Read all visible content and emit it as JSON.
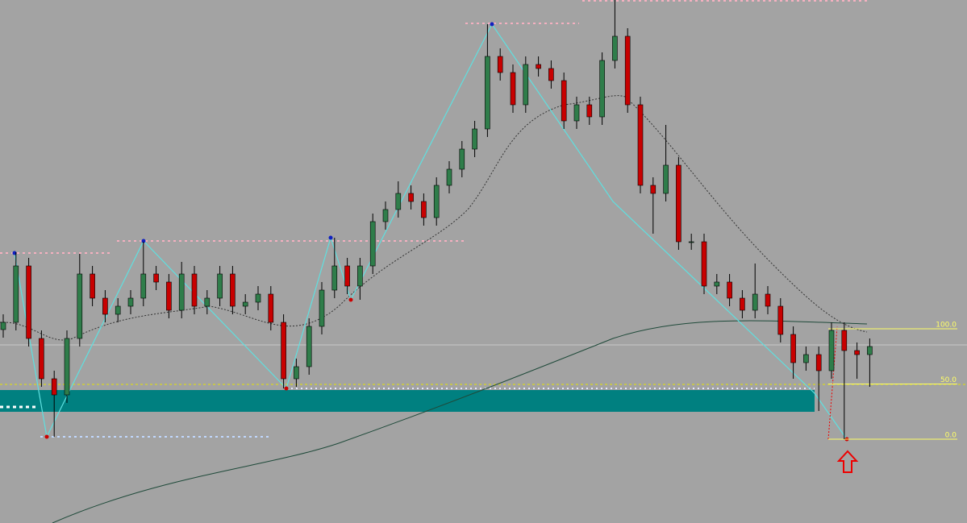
{
  "chart_data": {
    "type": "candlestick",
    "open": [
      240,
      249,
      319,
      229,
      179,
      159,
      229,
      309,
      279,
      259,
      269,
      279,
      309,
      299,
      264,
      309,
      269,
      279,
      309,
      269,
      274,
      284,
      249,
      179,
      194,
      244,
      289,
      319,
      294,
      319,
      374,
      389,
      409,
      399,
      379,
      419,
      439,
      464,
      489,
      579,
      559,
      519,
      569,
      564,
      549,
      499,
      519,
      504,
      574,
      604,
      519,
      419,
      409,
      444,
      349,
      349,
      294,
      299,
      279,
      264,
      284,
      269,
      234,
      199,
      209,
      189,
      239,
      214,
      209
    ],
    "high": [
      259,
      336,
      329,
      239,
      189,
      239,
      334,
      319,
      289,
      279,
      289,
      349,
      319,
      309,
      324,
      319,
      289,
      319,
      319,
      284,
      294,
      294,
      259,
      204,
      254,
      299,
      354,
      329,
      329,
      384,
      399,
      424,
      419,
      409,
      429,
      449,
      474,
      499,
      619,
      589,
      569,
      579,
      579,
      574,
      559,
      529,
      529,
      584,
      649,
      614,
      529,
      429,
      494,
      454,
      359,
      359,
      309,
      309,
      289,
      322,
      294,
      279,
      244,
      219,
      219,
      249,
      249,
      224,
      229
    ],
    "low": [
      230,
      239,
      219,
      169,
      107,
      149,
      219,
      269,
      249,
      249,
      259,
      269,
      289,
      254,
      254,
      259,
      259,
      269,
      259,
      259,
      264,
      239,
      167,
      169,
      184,
      234,
      279,
      284,
      277,
      309,
      364,
      379,
      389,
      369,
      369,
      409,
      429,
      454,
      479,
      549,
      509,
      509,
      554,
      539,
      489,
      489,
      494,
      494,
      564,
      509,
      409,
      359,
      399,
      339,
      339,
      284,
      284,
      269,
      254,
      254,
      259,
      224,
      179,
      189,
      139,
      179,
      104,
      179,
      169
    ],
    "close": [
      249,
      319,
      229,
      179,
      159,
      229,
      309,
      279,
      259,
      269,
      279,
      309,
      299,
      264,
      309,
      269,
      279,
      309,
      269,
      274,
      284,
      249,
      179,
      194,
      244,
      289,
      319,
      294,
      319,
      374,
      389,
      409,
      399,
      379,
      419,
      439,
      464,
      489,
      579,
      559,
      519,
      569,
      564,
      549,
      499,
      519,
      504,
      574,
      604,
      519,
      419,
      409,
      444,
      349,
      349,
      294,
      299,
      279,
      264,
      284,
      269,
      234,
      199,
      209,
      189,
      239,
      214,
      209,
      219
    ],
    "ylim": [
      0,
      649
    ],
    "up_color": "#2f7d4a",
    "down_color": "#c80000",
    "fib": {
      "range": [
        104,
        241
      ],
      "color": "#ffff66",
      "levels": [
        {
          "value": 100,
          "label": "100.0"
        },
        {
          "value": 50,
          "label": "50.0"
        },
        {
          "value": 0,
          "label": "0.0"
        }
      ]
    }
  }
}
